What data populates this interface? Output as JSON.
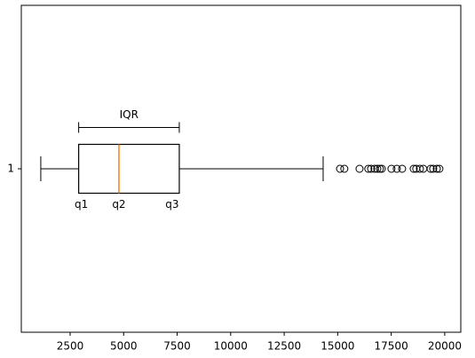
{
  "chart_data": {
    "type": "box",
    "orientation": "horizontal",
    "categories": [
      "1"
    ],
    "boxes": [
      {
        "whislo": 1130,
        "q1": 2900,
        "med": 4780,
        "q3": 7600,
        "whishi": 14320,
        "fliers": [
          15110,
          15310,
          16020,
          16430,
          16560,
          16720,
          16850,
          16970,
          17060,
          17510,
          17760,
          18010,
          18550,
          18670,
          18840,
          19000,
          19340,
          19460,
          19630,
          19750
        ]
      }
    ],
    "box_color": "#000000",
    "median_color": "#ff7f0e",
    "annotations": [
      {
        "text": "IQR"
      },
      {
        "text": "q1"
      },
      {
        "text": "q2"
      },
      {
        "text": "q3"
      }
    ],
    "xlim": [
      220,
      20750
    ],
    "xticks": [
      2500,
      5000,
      7500,
      10000,
      12500,
      15000,
      17500,
      20000
    ]
  }
}
